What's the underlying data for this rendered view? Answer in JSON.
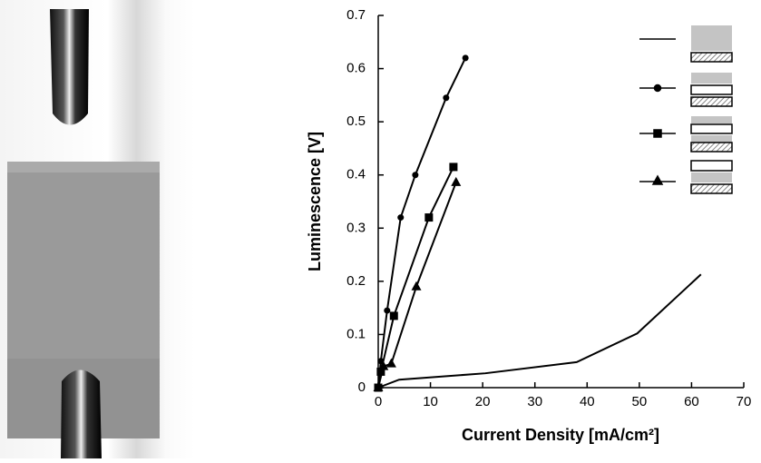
{
  "chart_data": {
    "type": "line",
    "xlabel": "Current Density [mA/cm²]",
    "ylabel": "Luminescence [V]",
    "xlim": [
      0,
      70
    ],
    "xticks": [
      0,
      10,
      20,
      30,
      40,
      50,
      60,
      70
    ],
    "ylim": [
      0,
      0.7
    ],
    "yticks": [
      0,
      0.1,
      0.2,
      0.3,
      0.4,
      0.5,
      0.6,
      0.7
    ],
    "series": [
      {
        "color": "#000000",
        "marker": "none",
        "x": [
          0,
          4,
          20.5,
          38,
          49.6,
          61.8
        ],
        "values": [
          0,
          0.015,
          0.027,
          0.048,
          0.102,
          0.213
        ]
      },
      {
        "color": "#000000",
        "marker": "circle",
        "x": [
          0,
          0.5,
          1.7,
          4.3,
          7.1,
          13,
          16.7
        ],
        "values": [
          0,
          0.05,
          0.145,
          0.32,
          0.4,
          0.545,
          0.62
        ]
      },
      {
        "color": "#000000",
        "marker": "square",
        "x": [
          0,
          0.5,
          3,
          9.7,
          14.4
        ],
        "values": [
          0,
          0.03,
          0.135,
          0.32,
          0.415
        ]
      },
      {
        "color": "#000000",
        "marker": "triangle",
        "x": [
          0,
          1,
          2.5,
          7.3,
          14.9
        ],
        "values": [
          0,
          0.04,
          0.045,
          0.19,
          0.386
        ]
      }
    ]
  }
}
